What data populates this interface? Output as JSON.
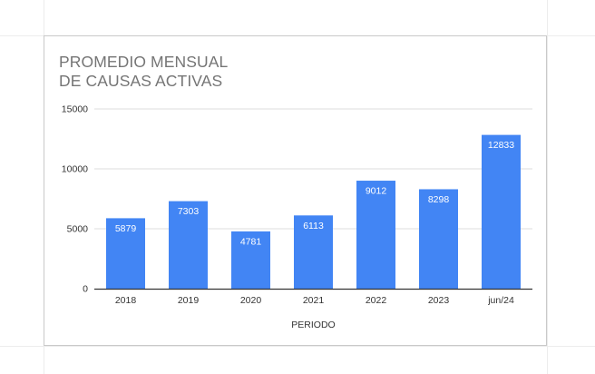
{
  "chart_data": {
    "type": "bar",
    "title_lines": [
      "PROMEDIO MENSUAL",
      "DE CAUSAS ACTIVAS"
    ],
    "xlabel": "PERIODO",
    "ylabel": "",
    "categories": [
      "2018",
      "2019",
      "2020",
      "2021",
      "2022",
      "2023",
      "jun/24"
    ],
    "values": [
      5879,
      7303,
      4781,
      6113,
      9012,
      8298,
      12833
    ],
    "ylim": [
      0,
      15000
    ],
    "yticks": [
      0,
      5000,
      10000,
      15000
    ],
    "grid": true,
    "legend": "none",
    "bar_color": "#4285f4",
    "label_color": "#ffffff",
    "grid_color": "#dddddd",
    "axis_color": "#333333",
    "title_color": "#757575"
  }
}
